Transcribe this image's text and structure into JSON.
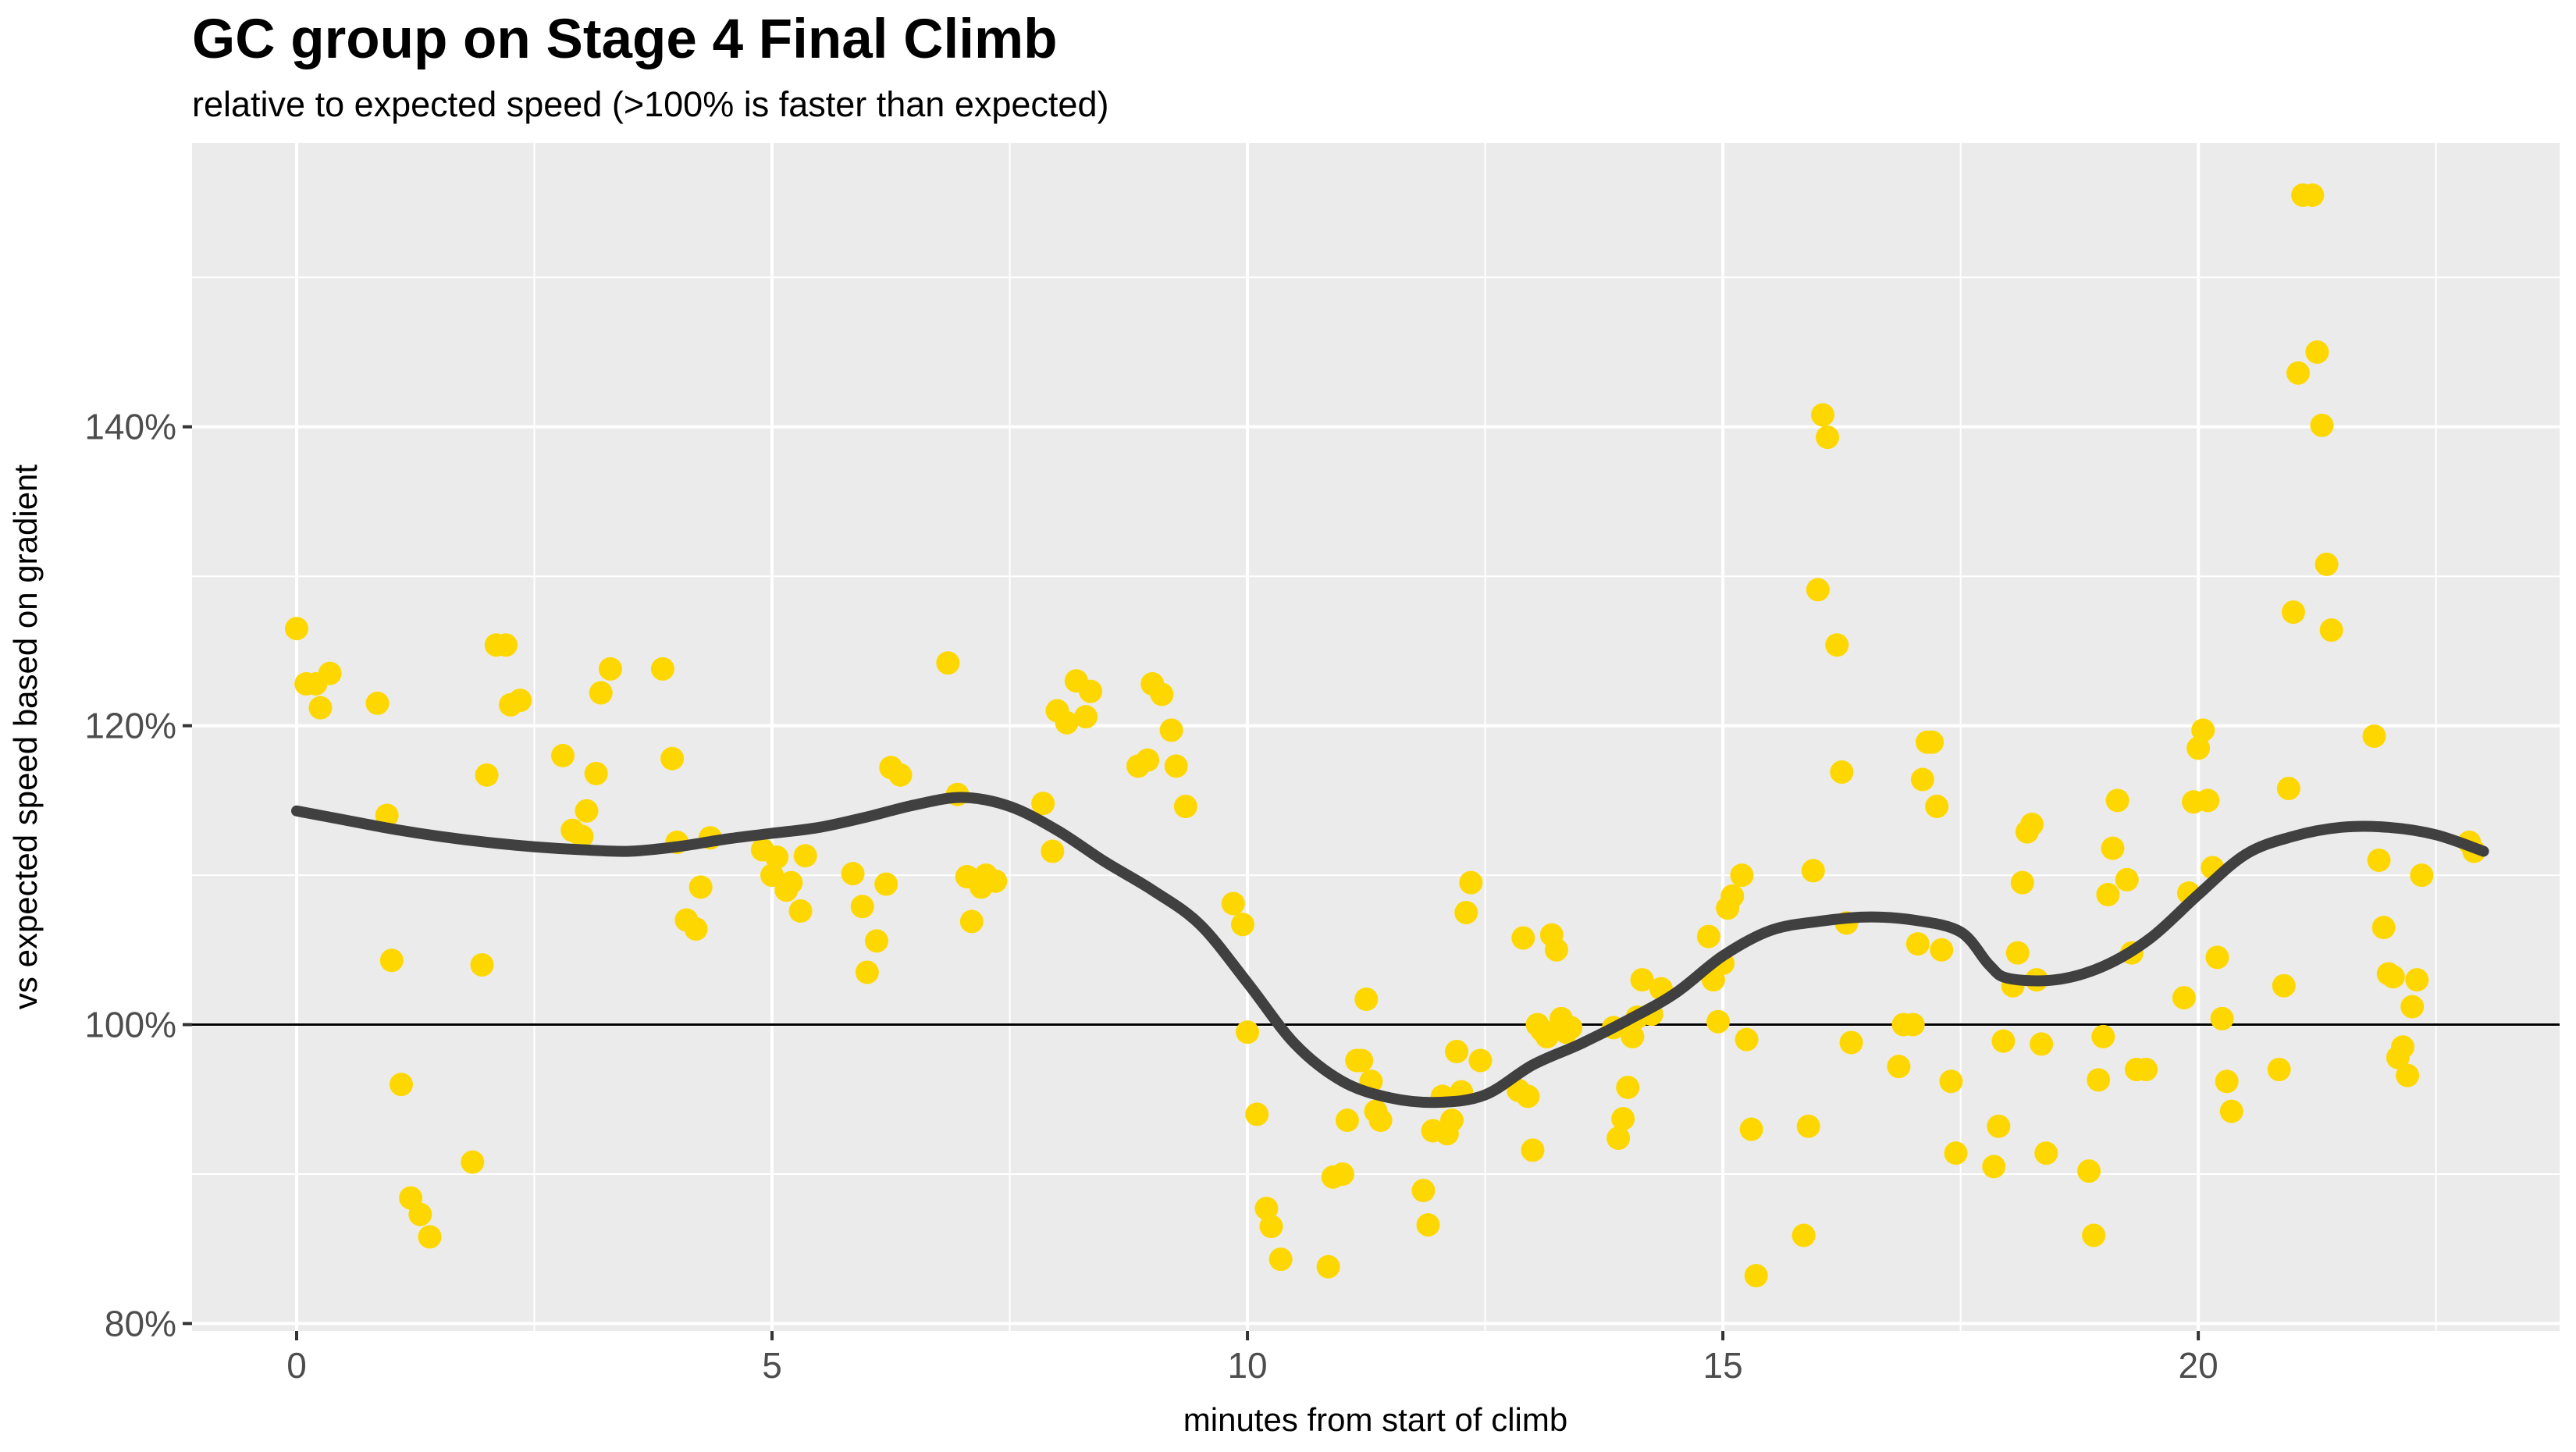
{
  "chart_data": {
    "type": "scatter",
    "title": "GC group on Stage 4 Final Climb",
    "subtitle": "relative to expected speed (>100% is faster than expected)",
    "xlabel": "minutes from start of climb",
    "ylabel": "vs expected speed based on gradient",
    "xlim": [
      -1.1,
      23.8
    ],
    "ylim": [
      79.5,
      159
    ],
    "x_ticks": [
      0,
      5,
      10,
      15,
      20
    ],
    "x_tick_labels": [
      "0",
      "5",
      "10",
      "15",
      "20"
    ],
    "y_ticks": [
      80,
      100,
      120,
      140
    ],
    "y_tick_labels": [
      "80%",
      "100%",
      "120%",
      "140%"
    ],
    "reference_line": 100,
    "grid": true,
    "colors": {
      "points": "#FFD700",
      "smooth": "#404040",
      "panel": "#EBEBEB",
      "grid": "#FFFFFF",
      "reference": "#000000"
    },
    "series": [
      {
        "values": [
          [
            0.0,
            126.5
          ],
          [
            0.1,
            122.8
          ],
          [
            0.2,
            122.8
          ],
          [
            0.25,
            121.2
          ],
          [
            0.35,
            123.5
          ],
          [
            0.85,
            121.5
          ],
          [
            0.95,
            114.0
          ],
          [
            1.0,
            104.3
          ],
          [
            1.1,
            96.0
          ],
          [
            1.2,
            88.4
          ],
          [
            1.3,
            87.3
          ],
          [
            1.4,
            85.8
          ],
          [
            1.85,
            90.8
          ],
          [
            1.95,
            104.0
          ],
          [
            2.0,
            116.7
          ],
          [
            2.1,
            125.4
          ],
          [
            2.2,
            125.4
          ],
          [
            2.25,
            121.4
          ],
          [
            2.35,
            121.7
          ],
          [
            2.8,
            118.0
          ],
          [
            2.9,
            113.0
          ],
          [
            3.0,
            112.6
          ],
          [
            3.05,
            114.3
          ],
          [
            3.15,
            116.8
          ],
          [
            3.2,
            122.2
          ],
          [
            3.3,
            123.8
          ],
          [
            3.85,
            123.8
          ],
          [
            3.95,
            117.8
          ],
          [
            4.0,
            112.2
          ],
          [
            4.1,
            107.0
          ],
          [
            4.2,
            106.4
          ],
          [
            4.25,
            109.2
          ],
          [
            4.35,
            112.5
          ],
          [
            4.9,
            111.7
          ],
          [
            5.0,
            110.0
          ],
          [
            5.05,
            111.2
          ],
          [
            5.15,
            109.0
          ],
          [
            5.2,
            109.5
          ],
          [
            5.3,
            107.6
          ],
          [
            5.35,
            111.3
          ],
          [
            5.85,
            110.1
          ],
          [
            5.95,
            107.9
          ],
          [
            6.0,
            103.5
          ],
          [
            6.1,
            105.6
          ],
          [
            6.2,
            109.4
          ],
          [
            6.25,
            117.2
          ],
          [
            6.35,
            116.7
          ],
          [
            6.85,
            124.2
          ],
          [
            6.95,
            115.4
          ],
          [
            7.05,
            109.9
          ],
          [
            7.1,
            106.9
          ],
          [
            7.2,
            109.2
          ],
          [
            7.25,
            110.0
          ],
          [
            7.35,
            109.6
          ],
          [
            7.85,
            114.8
          ],
          [
            7.95,
            111.6
          ],
          [
            8.0,
            121.0
          ],
          [
            8.1,
            120.2
          ],
          [
            8.2,
            123.0
          ],
          [
            8.3,
            120.6
          ],
          [
            8.35,
            122.3
          ],
          [
            8.85,
            117.3
          ],
          [
            8.95,
            117.7
          ],
          [
            9.0,
            122.8
          ],
          [
            9.1,
            122.1
          ],
          [
            9.2,
            119.7
          ],
          [
            9.25,
            117.3
          ],
          [
            9.35,
            114.6
          ],
          [
            9.85,
            108.1
          ],
          [
            9.95,
            106.7
          ],
          [
            10.0,
            99.5
          ],
          [
            10.1,
            94.0
          ],
          [
            10.2,
            87.7
          ],
          [
            10.25,
            86.5
          ],
          [
            10.35,
            84.3
          ],
          [
            10.85,
            83.8
          ],
          [
            10.9,
            89.8
          ],
          [
            11.0,
            90.0
          ],
          [
            11.05,
            93.6
          ],
          [
            11.15,
            97.6
          ],
          [
            11.2,
            97.6
          ],
          [
            11.25,
            101.7
          ],
          [
            11.3,
            96.2
          ],
          [
            11.35,
            94.2
          ],
          [
            11.4,
            93.6
          ],
          [
            11.85,
            88.9
          ],
          [
            11.9,
            86.6
          ],
          [
            11.95,
            92.9
          ],
          [
            12.05,
            95.2
          ],
          [
            12.1,
            92.7
          ],
          [
            12.15,
            93.6
          ],
          [
            12.2,
            98.2
          ],
          [
            12.25,
            95.5
          ],
          [
            12.3,
            107.5
          ],
          [
            12.35,
            109.5
          ],
          [
            12.45,
            97.6
          ],
          [
            12.85,
            95.6
          ],
          [
            12.9,
            105.8
          ],
          [
            12.95,
            95.2
          ],
          [
            13.0,
            91.6
          ],
          [
            13.05,
            100.0
          ],
          [
            13.1,
            99.6
          ],
          [
            13.15,
            99.2
          ],
          [
            13.2,
            106.0
          ],
          [
            13.25,
            105.0
          ],
          [
            13.3,
            100.4
          ],
          [
            13.35,
            99.5
          ],
          [
            13.4,
            99.8
          ],
          [
            13.85,
            99.8
          ],
          [
            13.9,
            92.4
          ],
          [
            13.95,
            93.7
          ],
          [
            14.0,
            95.8
          ],
          [
            14.05,
            99.2
          ],
          [
            14.1,
            100.5
          ],
          [
            14.15,
            103.0
          ],
          [
            14.25,
            100.7
          ],
          [
            14.35,
            102.4
          ],
          [
            14.85,
            105.9
          ],
          [
            14.9,
            103.0
          ],
          [
            14.95,
            100.2
          ],
          [
            15.0,
            104.1
          ],
          [
            15.05,
            107.8
          ],
          [
            15.1,
            108.6
          ],
          [
            15.2,
            110.0
          ],
          [
            15.25,
            99.0
          ],
          [
            15.3,
            93.0
          ],
          [
            15.35,
            83.2
          ],
          [
            15.85,
            85.9
          ],
          [
            15.9,
            93.2
          ],
          [
            15.95,
            110.3
          ],
          [
            16.0,
            129.1
          ],
          [
            16.05,
            140.8
          ],
          [
            16.1,
            139.3
          ],
          [
            16.2,
            125.4
          ],
          [
            16.25,
            116.9
          ],
          [
            16.3,
            106.8
          ],
          [
            16.35,
            98.8
          ],
          [
            16.85,
            97.2
          ],
          [
            16.9,
            100.0
          ],
          [
            17.0,
            100.0
          ],
          [
            17.05,
            105.4
          ],
          [
            17.1,
            116.4
          ],
          [
            17.15,
            118.9
          ],
          [
            17.2,
            118.9
          ],
          [
            17.25,
            114.6
          ],
          [
            17.3,
            105.0
          ],
          [
            17.4,
            96.2
          ],
          [
            17.45,
            91.4
          ],
          [
            17.85,
            90.5
          ],
          [
            17.9,
            93.2
          ],
          [
            17.95,
            98.9
          ],
          [
            18.05,
            102.6
          ],
          [
            18.1,
            104.8
          ],
          [
            18.15,
            109.5
          ],
          [
            18.2,
            112.9
          ],
          [
            18.25,
            113.4
          ],
          [
            18.3,
            103.0
          ],
          [
            18.35,
            98.7
          ],
          [
            18.4,
            91.4
          ],
          [
            18.85,
            90.2
          ],
          [
            18.9,
            85.9
          ],
          [
            18.95,
            96.3
          ],
          [
            19.0,
            99.2
          ],
          [
            19.05,
            108.7
          ],
          [
            19.1,
            111.8
          ],
          [
            19.15,
            115.0
          ],
          [
            19.25,
            109.7
          ],
          [
            19.3,
            104.8
          ],
          [
            19.35,
            97.0
          ],
          [
            19.45,
            97.0
          ],
          [
            19.85,
            101.8
          ],
          [
            19.9,
            108.8
          ],
          [
            19.95,
            114.9
          ],
          [
            20.0,
            118.5
          ],
          [
            20.05,
            119.7
          ],
          [
            20.1,
            115.0
          ],
          [
            20.15,
            110.5
          ],
          [
            20.2,
            104.5
          ],
          [
            20.25,
            100.4
          ],
          [
            20.3,
            96.2
          ],
          [
            20.35,
            94.2
          ],
          [
            20.85,
            97.0
          ],
          [
            20.9,
            102.6
          ],
          [
            20.95,
            115.8
          ],
          [
            21.0,
            127.6
          ],
          [
            21.05,
            143.6
          ],
          [
            21.1,
            155.5
          ],
          [
            21.2,
            155.5
          ],
          [
            21.25,
            145.0
          ],
          [
            21.3,
            140.1
          ],
          [
            21.35,
            130.8
          ],
          [
            21.4,
            126.4
          ],
          [
            21.85,
            119.3
          ],
          [
            21.9,
            111.0
          ],
          [
            21.95,
            106.5
          ],
          [
            22.0,
            103.4
          ],
          [
            22.05,
            103.2
          ],
          [
            22.1,
            97.8
          ],
          [
            22.15,
            98.5
          ],
          [
            22.2,
            96.6
          ],
          [
            22.25,
            101.2
          ],
          [
            22.3,
            103.0
          ],
          [
            22.35,
            110.0
          ],
          [
            22.85,
            112.2
          ],
          [
            22.9,
            111.6
          ]
        ]
      },
      {
        "type": "smooth",
        "values": [
          [
            0.0,
            114.3
          ],
          [
            0.5,
            113.7
          ],
          [
            1.0,
            113.1
          ],
          [
            1.5,
            112.6
          ],
          [
            2.0,
            112.2
          ],
          [
            2.5,
            111.9
          ],
          [
            3.0,
            111.7
          ],
          [
            3.5,
            111.6
          ],
          [
            4.0,
            111.9
          ],
          [
            4.5,
            112.4
          ],
          [
            5.0,
            112.8
          ],
          [
            5.5,
            113.2
          ],
          [
            6.0,
            113.9
          ],
          [
            6.5,
            114.7
          ],
          [
            7.0,
            115.2
          ],
          [
            7.5,
            114.6
          ],
          [
            8.0,
            113.0
          ],
          [
            8.5,
            110.9
          ],
          [
            9.0,
            109.0
          ],
          [
            9.5,
            106.7
          ],
          [
            10.0,
            102.8
          ],
          [
            10.5,
            98.7
          ],
          [
            11.0,
            96.2
          ],
          [
            11.5,
            95.1
          ],
          [
            12.0,
            94.8
          ],
          [
            12.5,
            95.3
          ],
          [
            13.0,
            97.3
          ],
          [
            13.5,
            98.7
          ],
          [
            14.0,
            100.3
          ],
          [
            14.5,
            102.1
          ],
          [
            15.0,
            104.6
          ],
          [
            15.5,
            106.3
          ],
          [
            16.0,
            106.9
          ],
          [
            16.5,
            107.2
          ],
          [
            17.0,
            107.0
          ],
          [
            17.5,
            106.2
          ],
          [
            17.8,
            104.0
          ],
          [
            18.0,
            103.1
          ],
          [
            18.5,
            103.0
          ],
          [
            19.0,
            103.9
          ],
          [
            19.5,
            105.8
          ],
          [
            20.0,
            108.7
          ],
          [
            20.5,
            111.4
          ],
          [
            21.0,
            112.6
          ],
          [
            21.5,
            113.2
          ],
          [
            22.0,
            113.2
          ],
          [
            22.5,
            112.7
          ],
          [
            23.0,
            111.6
          ]
        ]
      }
    ]
  }
}
